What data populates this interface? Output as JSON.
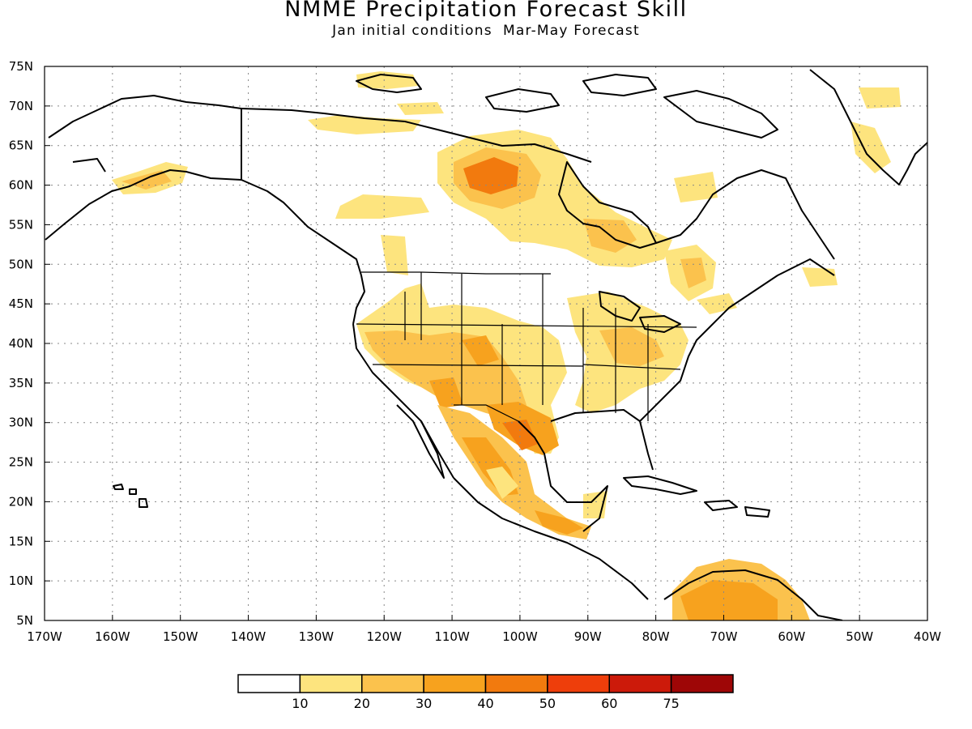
{
  "title": "NMME Precipitation Forecast Skill",
  "subtitle": "Jan initial conditions  Mar-May Forecast",
  "map": {
    "lon_range": [
      -170,
      -40
    ],
    "lat_range": [
      5,
      75
    ],
    "lat_ticks": [
      "75N",
      "70N",
      "65N",
      "60N",
      "55N",
      "50N",
      "45N",
      "40N",
      "35N",
      "30N",
      "25N",
      "20N",
      "15N",
      "10N",
      "5N"
    ],
    "lon_ticks": [
      "170W",
      "160W",
      "150W",
      "140W",
      "130W",
      "120W",
      "110W",
      "100W",
      "90W",
      "80W",
      "70W",
      "60W",
      "50W",
      "40W"
    ],
    "gridlines": "dotted"
  },
  "colorbar": {
    "labels": [
      "10",
      "20",
      "30",
      "40",
      "50",
      "60",
      "75"
    ],
    "colors": [
      "#ffffff",
      "#fde47e",
      "#fbc24d",
      "#f7a21e",
      "#f27a0e",
      "#ee3e0b",
      "#cc1a0a",
      "#9e0606"
    ]
  },
  "skill_colors": {
    "c10": "#fde47e",
    "c20": "#fbc24d",
    "c30": "#f7a21e",
    "c40": "#f27a0e"
  }
}
